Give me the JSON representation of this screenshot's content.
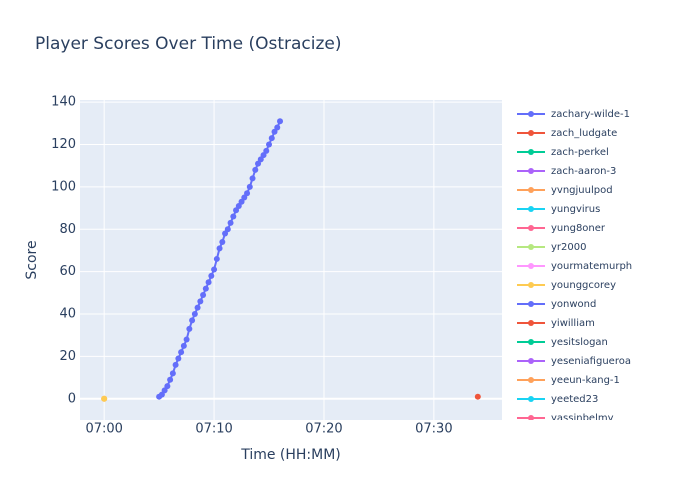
{
  "chart_data": {
    "type": "line",
    "title": "Player Scores Over Time (Ostracize)",
    "xlabel": "Time (HH:MM)",
    "ylabel": "Score",
    "xlim": [
      -2.2,
      36.2
    ],
    "xticks": [
      {
        "value": 0,
        "label": "07:00"
      },
      {
        "value": 10,
        "label": "07:10"
      },
      {
        "value": 20,
        "label": "07:20"
      },
      {
        "value": 30,
        "label": "07:30"
      }
    ],
    "ylim": [
      -10,
      141
    ],
    "yticks": [
      0,
      20,
      40,
      60,
      80,
      100,
      120,
      140
    ],
    "grid": true,
    "series": [
      {
        "name": "zachary-wilde-1",
        "color": "#636efa",
        "x": [
          5.0,
          5.25,
          5.5,
          5.75,
          6.0,
          6.25,
          6.5,
          6.75,
          7.0,
          7.25,
          7.5,
          7.75,
          8.0,
          8.25,
          8.5,
          8.75,
          9.0,
          9.25,
          9.5,
          9.75,
          10.0,
          10.25,
          10.5,
          10.75,
          11.0,
          11.25,
          11.5,
          11.75,
          12.0,
          12.25,
          12.5,
          12.75,
          13.0,
          13.25,
          13.5,
          13.75,
          14.0,
          14.25,
          14.5,
          14.75,
          15.0,
          15.25,
          15.5,
          15.75,
          16.0
        ],
        "values": [
          1,
          2,
          4,
          6,
          9,
          12,
          16,
          19,
          22,
          25,
          28,
          33,
          37,
          40,
          43,
          46,
          49,
          52,
          55,
          58,
          61,
          66,
          71,
          74,
          78,
          80,
          83,
          86,
          89,
          91,
          93,
          95,
          97,
          100,
          104,
          108,
          111,
          113,
          115,
          117,
          120,
          123,
          126,
          128,
          131
        ]
      },
      {
        "name": "zach_ludgate",
        "color": "#EF553B",
        "x": [
          34
        ],
        "values": [
          1
        ]
      },
      {
        "name": "zach-perkel",
        "color": "#00cc96",
        "x": [],
        "values": []
      },
      {
        "name": "zach-aaron-3",
        "color": "#ab63fa",
        "x": [],
        "values": []
      },
      {
        "name": "yvngjuulpod",
        "color": "#FFA15A",
        "x": [
          0
        ],
        "values": [
          0
        ]
      },
      {
        "name": "yungvirus",
        "color": "#19d3f3",
        "x": [],
        "values": []
      },
      {
        "name": "yung8oner",
        "color": "#FF6692",
        "x": [],
        "values": []
      },
      {
        "name": "yr2000",
        "color": "#B6E880",
        "x": [],
        "values": []
      },
      {
        "name": "yourmatemurph",
        "color": "#FF97FF",
        "x": [],
        "values": []
      },
      {
        "name": "younggcorey",
        "color": "#FECB52",
        "x": [
          0
        ],
        "values": [
          0
        ]
      },
      {
        "name": "yonwond",
        "color": "#636efa",
        "x": [],
        "values": []
      },
      {
        "name": "yiwilliam",
        "color": "#EF553B",
        "x": [],
        "values": []
      },
      {
        "name": "yesitslogan",
        "color": "#00cc96",
        "x": [],
        "values": []
      },
      {
        "name": "yeseniafigueroa",
        "color": "#ab63fa",
        "x": [],
        "values": []
      },
      {
        "name": "yeeun-kang-1",
        "color": "#FFA15A",
        "x": [],
        "values": []
      },
      {
        "name": "yeeted23",
        "color": "#19d3f3",
        "x": [],
        "values": []
      },
      {
        "name": "yassinbelmy",
        "color": "#FF6692",
        "x": [],
        "values": []
      }
    ]
  }
}
